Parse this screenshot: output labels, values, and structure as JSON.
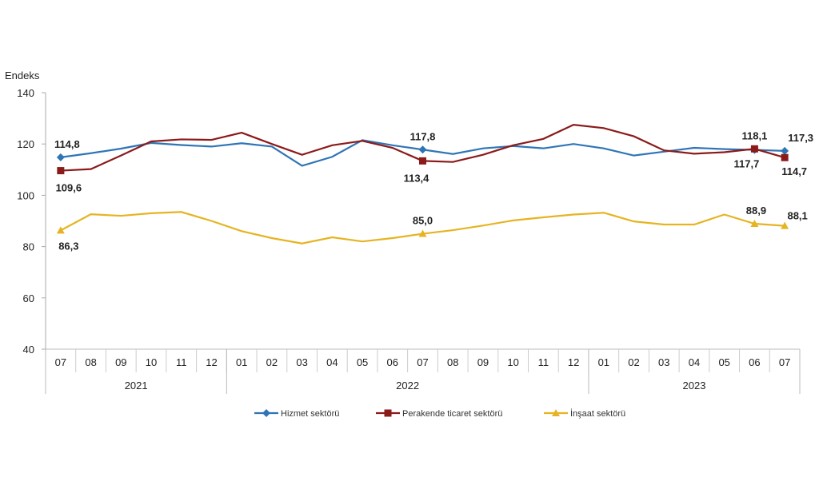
{
  "chart_data": {
    "type": "line",
    "ylabel": "Endeks",
    "ylim": [
      40,
      140
    ],
    "yticks": [
      "40",
      "60",
      "80",
      "100",
      "120",
      "140"
    ],
    "grid": false,
    "legend_position": "bottom",
    "categories": [
      "07",
      "08",
      "09",
      "10",
      "11",
      "12",
      "01",
      "02",
      "03",
      "04",
      "05",
      "06",
      "07",
      "08",
      "09",
      "10",
      "11",
      "12",
      "01",
      "02",
      "03",
      "04",
      "05",
      "06",
      "07"
    ],
    "year_groups": [
      {
        "label": "2021",
        "count": 6
      },
      {
        "label": "2022",
        "count": 12
      },
      {
        "label": "2023",
        "count": 7
      }
    ],
    "series": [
      {
        "name": "Hizmet sektörü",
        "color": "#2e75b6",
        "marker": "diamond",
        "values": [
          114.8,
          116.4,
          118.2,
          120.4,
          119.6,
          119.0,
          120.3,
          119.0,
          111.5,
          115.0,
          121.5,
          119.5,
          117.8,
          116.1,
          118.3,
          119.2,
          118.3,
          120.0,
          118.3,
          115.5,
          117.0,
          118.5,
          118.0,
          117.7,
          117.3
        ],
        "labels": {
          "0": "114,8",
          "12": "117,8",
          "23": "117,7",
          "24": "117,3"
        }
      },
      {
        "name": "Perakende ticaret sektörü",
        "color": "#8b1a1a",
        "marker": "square",
        "values": [
          109.6,
          110.2,
          115.5,
          121.0,
          121.8,
          121.6,
          124.4,
          120.0,
          115.8,
          119.5,
          121.2,
          118.5,
          113.4,
          113.0,
          115.8,
          119.5,
          122.0,
          127.5,
          126.2,
          123.0,
          117.5,
          116.2,
          116.8,
          118.1,
          114.7
        ],
        "labels": {
          "0": "109,6",
          "12": "113,4",
          "23": "118,1",
          "24": "114,7"
        }
      },
      {
        "name": "İnşaat sektörü",
        "color": "#e6b422",
        "marker": "triangle",
        "values": [
          86.3,
          92.6,
          92.0,
          93.0,
          93.5,
          90.0,
          86.0,
          83.3,
          81.2,
          83.6,
          82.0,
          83.3,
          85.0,
          86.4,
          88.2,
          90.2,
          91.4,
          92.5,
          93.2,
          89.8,
          88.6,
          88.6,
          92.5,
          88.9,
          88.1
        ],
        "labels": {
          "0": "86,3",
          "12": "85,0",
          "23": "88,9",
          "24": "88,1"
        }
      }
    ]
  }
}
